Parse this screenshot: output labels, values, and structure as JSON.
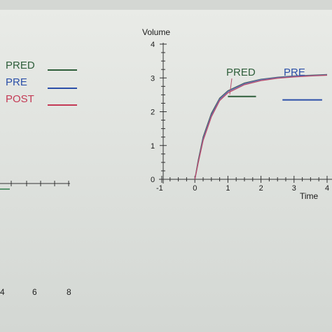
{
  "chart_data": {
    "type": "line",
    "ylabel": "Volume",
    "xlabel": "Time",
    "xlim": [
      -1,
      4
    ],
    "ylim": [
      0,
      4
    ],
    "x_ticks": [
      -1,
      0,
      1,
      2,
      3,
      4
    ],
    "y_ticks": [
      0,
      1,
      2,
      3,
      4
    ],
    "legend": [
      {
        "name": "PRED",
        "color": "#2e5e3a"
      },
      {
        "name": "PRE",
        "color": "#2b4fa8"
      },
      {
        "name": "POST",
        "color": "#c43a55"
      }
    ],
    "annotations": [
      {
        "text": "PRED",
        "color": "#2e5e3a",
        "marker_y": 2.45,
        "marker_x": [
          1.0,
          1.85
        ]
      },
      {
        "text": "PRE",
        "color": "#2b4fa8",
        "marker_y": 2.35,
        "marker_x": [
          2.65,
          3.85
        ]
      }
    ],
    "series": [
      {
        "name": "PRED",
        "color": "#4b5e56",
        "x": [
          0,
          0.1,
          0.25,
          0.5,
          0.75,
          1.0,
          1.5,
          2.0,
          2.5,
          3.0,
          3.5,
          4.0
        ],
        "y": [
          0,
          0.55,
          1.25,
          1.95,
          2.4,
          2.62,
          2.85,
          2.96,
          3.02,
          3.06,
          3.08,
          3.1
        ]
      },
      {
        "name": "PRE",
        "color": "#5a6fb3",
        "x": [
          0,
          0.1,
          0.25,
          0.5,
          0.75,
          1.0,
          1.5,
          2.0,
          2.5,
          3.0,
          3.5,
          4.0
        ],
        "y": [
          0,
          0.5,
          1.2,
          1.9,
          2.37,
          2.6,
          2.83,
          2.95,
          3.01,
          3.05,
          3.07,
          3.09
        ]
      },
      {
        "name": "POST",
        "color": "#b8506e",
        "x": [
          0,
          0.1,
          0.25,
          0.5,
          0.75,
          1.0,
          1.5,
          2.0,
          2.5,
          3.0,
          3.5,
          4.0
        ],
        "y": [
          0,
          0.48,
          1.15,
          1.85,
          2.33,
          2.56,
          2.8,
          2.92,
          2.99,
          3.03,
          3.06,
          3.08
        ]
      }
    ]
  },
  "left_ticks": [
    "4",
    "6",
    "8"
  ]
}
